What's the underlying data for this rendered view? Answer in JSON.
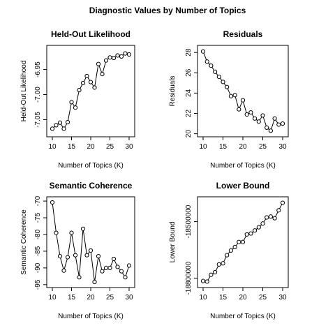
{
  "figure": {
    "title": "Diagnostic Values by Number of Topics"
  },
  "chart_data": [
    {
      "id": "held-out",
      "type": "line",
      "title": "Held-Out Likelihood",
      "xlabel": "Number of Topics (K)",
      "ylabel": "Held-Out Likelihood",
      "xlim": [
        10,
        30
      ],
      "ylim": [
        -7.073,
        -6.913
      ],
      "xticks": [
        10,
        15,
        20,
        25,
        30
      ],
      "xtick_labels": [
        "10",
        "15",
        "20",
        "25",
        "30"
      ],
      "yticks": [
        -7.05,
        -7.0,
        -6.95
      ],
      "ytick_labels": [
        "-7.05",
        "-7.00",
        "-6.95"
      ],
      "x": [
        10,
        11,
        12,
        13,
        14,
        15,
        16,
        17,
        18,
        19,
        20,
        21,
        22,
        23,
        24,
        25,
        26,
        27,
        28,
        29,
        30
      ],
      "y": [
        -7.068,
        -7.061,
        -7.056,
        -7.068,
        -7.055,
        -7.015,
        -7.026,
        -6.991,
        -6.977,
        -6.963,
        -6.975,
        -6.986,
        -6.939,
        -6.959,
        -6.932,
        -6.926,
        -6.927,
        -6.922,
        -6.924,
        -6.918,
        -6.92
      ]
    },
    {
      "id": "residuals",
      "type": "line",
      "title": "Residuals",
      "xlabel": "Number of Topics (K)",
      "ylabel": "Residuals",
      "xlim": [
        10,
        30
      ],
      "ylim": [
        20.25,
        28.15
      ],
      "xticks": [
        10,
        15,
        20,
        25,
        30
      ],
      "xtick_labels": [
        "10",
        "15",
        "20",
        "25",
        "30"
      ],
      "yticks": [
        20,
        22,
        24,
        26,
        28
      ],
      "ytick_labels": [
        "20",
        "22",
        "24",
        "26",
        "28"
      ],
      "x": [
        10,
        11,
        12,
        13,
        14,
        15,
        16,
        17,
        18,
        19,
        20,
        21,
        22,
        23,
        24,
        25,
        26,
        27,
        28,
        29,
        30
      ],
      "y": [
        28.1,
        27.1,
        26.7,
        26.1,
        25.6,
        25.1,
        24.6,
        23.7,
        23.8,
        22.4,
        23.3,
        21.9,
        22.1,
        21.5,
        21.2,
        21.8,
        20.6,
        20.3,
        21.5,
        20.9,
        21.0
      ]
    },
    {
      "id": "coherence",
      "type": "line",
      "title": "Semantic Coherence",
      "xlabel": "Number of Topics (K)",
      "ylabel": "Semantic Coherence",
      "xlim": [
        10,
        30
      ],
      "ylim": [
        -94.2,
        -70.4
      ],
      "xticks": [
        10,
        15,
        20,
        25,
        30
      ],
      "xtick_labels": [
        "10",
        "15",
        "20",
        "25",
        "30"
      ],
      "yticks": [
        -95,
        -90,
        -85,
        -80,
        -75,
        -70
      ],
      "ytick_labels": [
        "-95",
        "-90",
        "-85",
        "-80",
        "-75",
        "-70"
      ],
      "x": [
        10,
        11,
        12,
        13,
        14,
        15,
        16,
        17,
        18,
        19,
        20,
        21,
        22,
        23,
        24,
        25,
        26,
        27,
        28,
        29,
        30
      ],
      "y": [
        -70.4,
        -79.5,
        -86.5,
        -90.8,
        -86.8,
        -79.5,
        -86.2,
        -92.8,
        -78.3,
        -86.2,
        -84.8,
        -94.2,
        -86.5,
        -91.0,
        -90.0,
        -90.0,
        -87.3,
        -89.7,
        -91.0,
        -92.8,
        -89.3
      ]
    },
    {
      "id": "lower-bound",
      "type": "line",
      "title": "Lower Bound",
      "xlabel": "Number of Topics (K)",
      "ylabel": "Lower Bound",
      "xlim": [
        10,
        30
      ],
      "ylim": [
        -18820000,
        -18398000
      ],
      "xticks": [
        10,
        15,
        20,
        25,
        30
      ],
      "xtick_labels": [
        "10",
        "15",
        "20",
        "25",
        "30"
      ],
      "yticks": [
        -18800000,
        -18500000
      ],
      "ytick_labels": [
        "-18800000",
        "-18500000"
      ],
      "x": [
        10,
        11,
        12,
        13,
        14,
        15,
        16,
        17,
        18,
        19,
        20,
        21,
        22,
        23,
        24,
        25,
        26,
        27,
        28,
        29,
        30
      ],
      "y": [
        -18815000,
        -18818000,
        -18782000,
        -18768000,
        -18727000,
        -18721000,
        -18678000,
        -18653000,
        -18635000,
        -18608000,
        -18608000,
        -18568000,
        -18563000,
        -18547000,
        -18530000,
        -18510000,
        -18478000,
        -18473000,
        -18482000,
        -18440000,
        -18400000
      ]
    }
  ]
}
